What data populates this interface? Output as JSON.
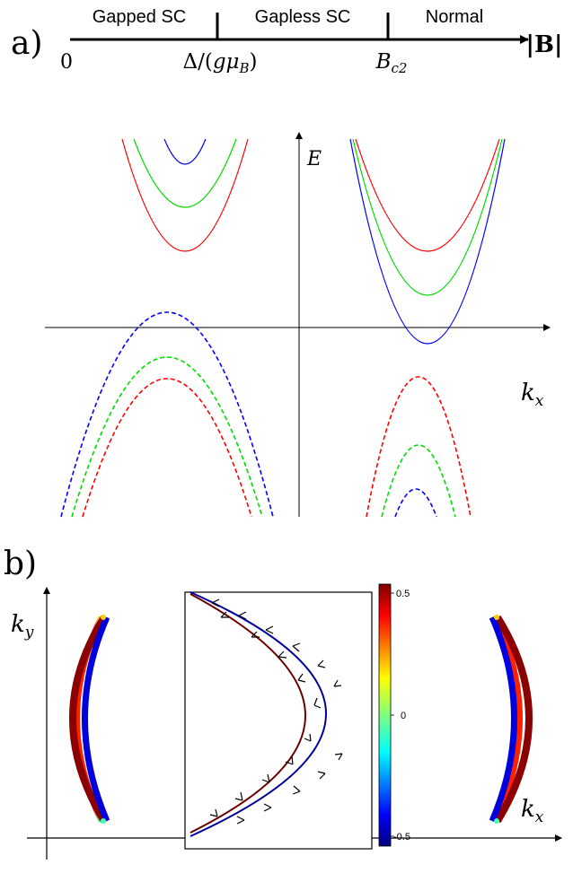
{
  "panel_a": {
    "label": "a)",
    "regions": [
      "Gapped SC",
      "Gapless SC",
      "Normal"
    ],
    "tick_start": "0",
    "tick_gap_prefix": "Δ/(",
    "tick_gap_g": "g",
    "tick_gap_mu": "μ",
    "tick_gap_sub": "B",
    "tick_gap_suffix": ")",
    "tick_bc2": "B",
    "tick_bc2_sub": "c2",
    "axis_label": "|B|"
  },
  "band_plot": {
    "ylabel": "E",
    "xlabel": "k",
    "xlabel_sub": "x"
  },
  "panel_b": {
    "label": "b)",
    "ylabel": "k",
    "ylabel_sub": "y",
    "xlabel": "k",
    "xlabel_sub": "x",
    "colorbar_ticks": [
      "0.5",
      "0",
      "-0.5"
    ]
  },
  "colors": {
    "red": "#ff0000",
    "green": "#00dd00",
    "blue": "#0000ff",
    "colorbar_top": "#7f0000",
    "colorbar_bottom": "#00007f"
  }
}
